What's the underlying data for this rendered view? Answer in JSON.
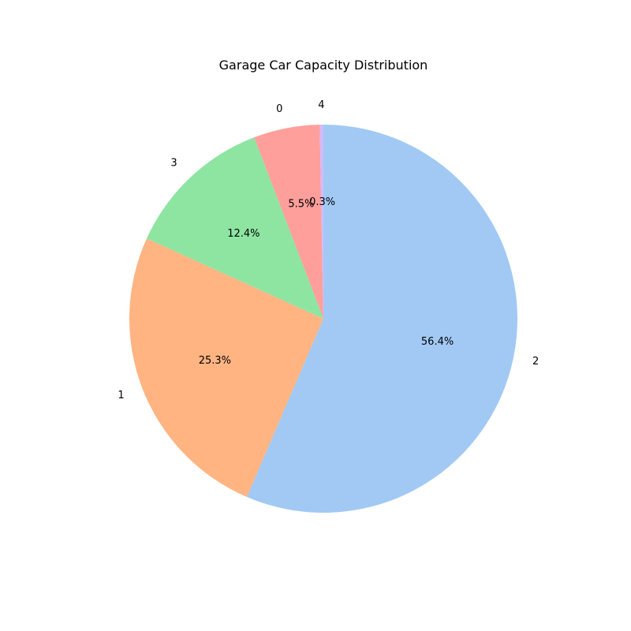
{
  "chart_data": {
    "type": "pie",
    "title": "Garage Car Capacity Distribution",
    "start_angle_deg": 90,
    "direction": "clockwise",
    "slices": [
      {
        "label": "2",
        "percent": 56.4,
        "percent_label": "56.4%",
        "color": "#a1c9f4"
      },
      {
        "label": "1",
        "percent": 25.3,
        "percent_label": "25.3%",
        "color": "#ffb482"
      },
      {
        "label": "3",
        "percent": 12.4,
        "percent_label": "12.4%",
        "color": "#8de5a1"
      },
      {
        "label": "0",
        "percent": 5.5,
        "percent_label": "5.5%",
        "color": "#ff9f9b"
      },
      {
        "label": "4",
        "percent": 0.3,
        "percent_label": "0.3%",
        "color": "#d0bbff"
      }
    ]
  }
}
